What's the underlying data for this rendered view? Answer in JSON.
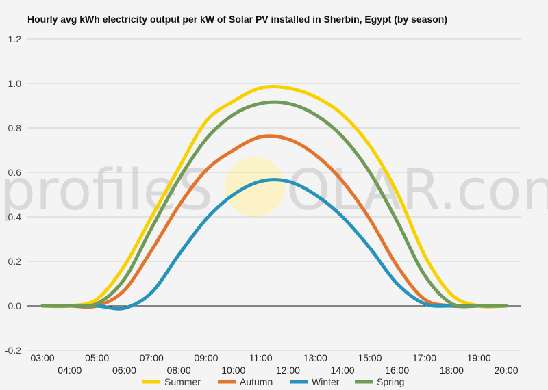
{
  "chart_data": {
    "type": "line",
    "title": "Hourly avg kWh electricity output per kW of Solar PV installed in Sherbin, Egypt (by season)",
    "xlabel": "",
    "ylabel": "",
    "ylim": [
      -0.2,
      1.2
    ],
    "yticks": [
      "-0.2",
      "0.0",
      "0.2",
      "0.4",
      "0.6",
      "0.8",
      "1.0",
      "1.2"
    ],
    "categories": [
      "03:00",
      "04:00",
      "05:00",
      "06:00",
      "07:00",
      "08:00",
      "09:00",
      "10:00",
      "11:00",
      "12:00",
      "13:00",
      "14:00",
      "15:00",
      "16:00",
      "17:00",
      "18:00",
      "19:00",
      "20:00"
    ],
    "grid": true,
    "legend": "bottom",
    "watermark": "profileSOLAR.com",
    "series": [
      {
        "name": "Summer",
        "color": "#f7d100",
        "values": [
          0.0,
          0.0,
          0.03,
          0.18,
          0.4,
          0.62,
          0.83,
          0.92,
          0.98,
          0.98,
          0.94,
          0.86,
          0.72,
          0.51,
          0.23,
          0.05,
          0.0,
          0.0
        ]
      },
      {
        "name": "Autumn",
        "color": "#e3742d",
        "values": [
          0.0,
          0.0,
          0.0,
          0.07,
          0.25,
          0.45,
          0.61,
          0.7,
          0.76,
          0.75,
          0.68,
          0.56,
          0.39,
          0.18,
          0.03,
          0.0,
          0.0,
          0.0
        ]
      },
      {
        "name": "Winter",
        "color": "#2693bd",
        "values": [
          0.0,
          0.0,
          0.0,
          -0.01,
          0.06,
          0.23,
          0.39,
          0.5,
          0.56,
          0.56,
          0.5,
          0.4,
          0.26,
          0.1,
          0.01,
          0.0,
          0.0,
          0.0
        ]
      },
      {
        "name": "Spring",
        "color": "#6f9a58",
        "values": [
          0.0,
          0.0,
          0.01,
          0.12,
          0.35,
          0.57,
          0.75,
          0.86,
          0.91,
          0.91,
          0.86,
          0.76,
          0.6,
          0.38,
          0.14,
          0.01,
          0.0,
          0.0
        ]
      }
    ]
  }
}
